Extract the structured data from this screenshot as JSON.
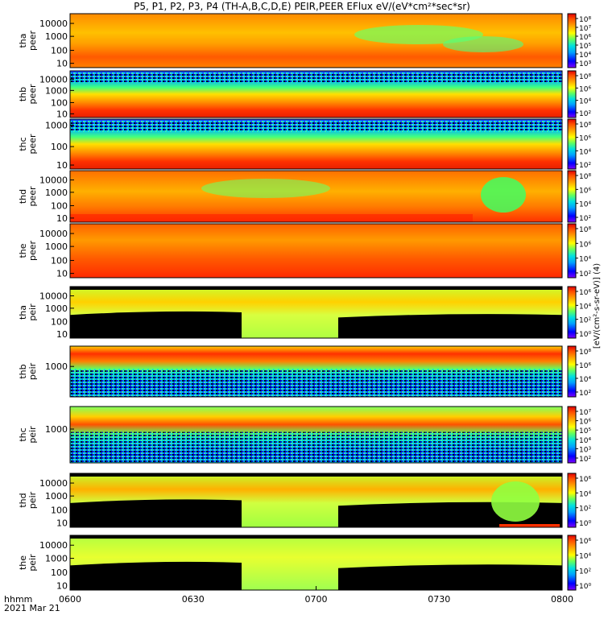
{
  "title": "P5, P1, P2, P3, P4 (TH-A,B,C,D,E) PEIR,PEER EFlux eV/(eV*cm²*sec*sr)",
  "footer": {
    "time_label": "hhmm",
    "date_label": "2021 Mar 21"
  },
  "colorbar_unit": "[eV/(cm²-s-sr-eV)] (4)",
  "colors": {
    "background": "#000000",
    "scale": [
      "#7f00ff",
      "#0000ff",
      "#00a0ff",
      "#00e0e0",
      "#60ff60",
      "#c0ff30",
      "#ffff00",
      "#ffa000",
      "#ff5000",
      "#e00000"
    ]
  },
  "chart_data": [
    {
      "type": "heatmap",
      "panel": "tha-peer",
      "ylabel": [
        "tha",
        "peer"
      ],
      "yscale": "log",
      "yticks": [
        "10000",
        "1000",
        "100",
        "10"
      ],
      "cbar_ticks": [
        "10⁸",
        "10⁷",
        "10⁶",
        "10⁵",
        "10⁴",
        "10³"
      ],
      "energy_range_eV": [
        7,
        30000
      ],
      "description_level": "high flux, green patch 0700-0730 near 1000-10000 eV"
    },
    {
      "type": "heatmap",
      "panel": "thb-peer",
      "ylabel": [
        "thb",
        "peer"
      ],
      "yscale": "log",
      "yticks": [
        "10000",
        "1000",
        "100",
        "10"
      ],
      "cbar_ticks": [
        "10⁸",
        "10⁶",
        "10⁴",
        "10²"
      ],
      "energy_range_eV": [
        7,
        30000
      ]
    },
    {
      "type": "heatmap",
      "panel": "thc-peer",
      "ylabel": [
        "thc",
        "peer"
      ],
      "yscale": "log",
      "yticks": [
        "1000",
        "100",
        "10"
      ],
      "cbar_ticks": [
        "10⁸",
        "10⁶",
        "10⁴",
        "10²"
      ],
      "energy_range_eV": [
        7,
        10000
      ]
    },
    {
      "type": "heatmap",
      "panel": "thd-peer",
      "ylabel": [
        "thd",
        "peer"
      ],
      "yscale": "log",
      "yticks": [
        "10000",
        "1000",
        "100",
        "10"
      ],
      "cbar_ticks": [
        "10⁸",
        "10⁶",
        "10⁴",
        "10²"
      ],
      "energy_range_eV": [
        7,
        30000
      ]
    },
    {
      "type": "heatmap",
      "panel": "the-peer",
      "ylabel": [
        "the",
        "peer"
      ],
      "yscale": "log",
      "yticks": [
        "10000",
        "1000",
        "100",
        "10"
      ],
      "cbar_ticks": [
        "10⁸",
        "10⁶",
        "10⁴",
        "10²"
      ],
      "energy_range_eV": [
        7,
        30000
      ]
    },
    {
      "type": "heatmap",
      "panel": "tha-peir",
      "ylabel": [
        "tha",
        "peir"
      ],
      "yscale": "log",
      "yticks": [
        "10000",
        "1000",
        "100",
        "10"
      ],
      "cbar_ticks": [
        "10⁶",
        "10⁴",
        "10²",
        "10⁰"
      ],
      "energy_range_eV": [
        7,
        30000
      ]
    },
    {
      "type": "heatmap",
      "panel": "thb-peir",
      "ylabel": [
        "thb",
        "peir"
      ],
      "yscale": "log",
      "yticks": [
        "1000"
      ],
      "cbar_ticks": [
        "10⁸",
        "10⁶",
        "10⁴",
        "10²"
      ],
      "energy_range_eV": [
        5,
        30000
      ]
    },
    {
      "type": "heatmap",
      "panel": "thc-peir",
      "ylabel": [
        "thc",
        "peir"
      ],
      "yscale": "log",
      "yticks": [
        "1000"
      ],
      "cbar_ticks": [
        "10⁷",
        "10⁶",
        "10⁵",
        "10⁴",
        "10³",
        "10²"
      ],
      "energy_range_eV": [
        5,
        30000
      ]
    },
    {
      "type": "heatmap",
      "panel": "thd-peir",
      "ylabel": [
        "thd",
        "peir"
      ],
      "yscale": "log",
      "yticks": [
        "10000",
        "1000",
        "100",
        "10"
      ],
      "cbar_ticks": [
        "10⁶",
        "10⁴",
        "10²",
        "10⁰"
      ],
      "energy_range_eV": [
        7,
        30000
      ]
    },
    {
      "type": "heatmap",
      "panel": "the-peir",
      "ylabel": [
        "the",
        "peir"
      ],
      "yscale": "log",
      "yticks": [
        "10000",
        "1000",
        "100",
        "10"
      ],
      "cbar_ticks": [
        "10⁶",
        "10⁴",
        "10²",
        "10⁰"
      ],
      "energy_range_eV": [
        7,
        30000
      ]
    }
  ],
  "xaxis": {
    "ticks": [
      "0600",
      "0630",
      "0700",
      "0730",
      "0800"
    ],
    "range_hhmm": [
      "0600",
      "0800"
    ]
  }
}
